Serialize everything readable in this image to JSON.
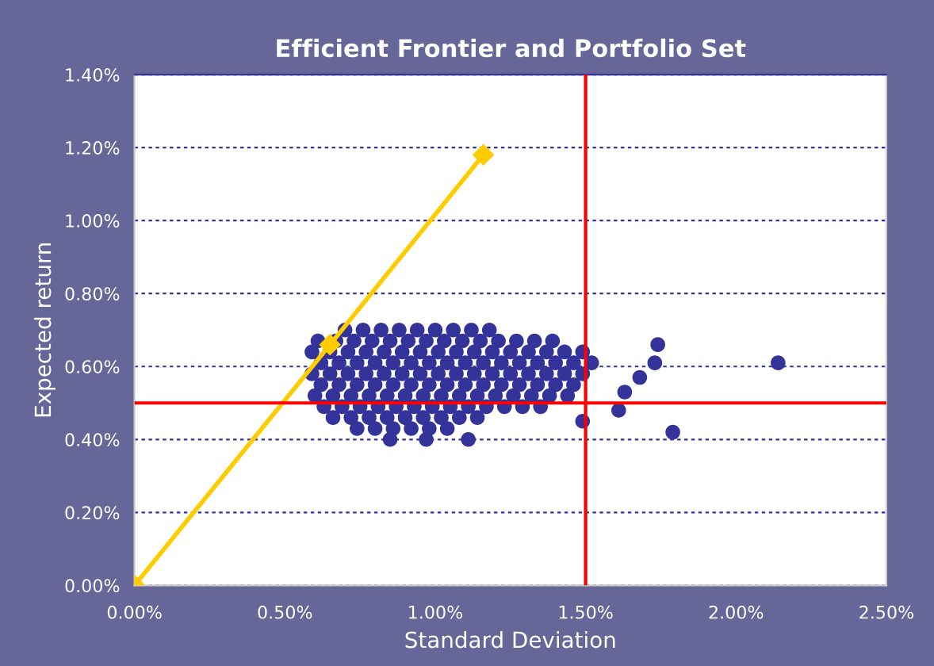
{
  "chart_data": {
    "type": "scatter",
    "title": "Efficient Frontier and Portfolio Set",
    "xlabel": "Standard Deviation",
    "ylabel": "Expected return",
    "xlim": [
      0,
      2.5
    ],
    "ylim": [
      0,
      1.4
    ],
    "xticks": [
      {
        "value": 0,
        "label": "0.00%"
      },
      {
        "value": 0.5,
        "label": "0.50%"
      },
      {
        "value": 1,
        "label": "1.00%"
      },
      {
        "value": 1.5,
        "label": "1.50%"
      },
      {
        "value": 2,
        "label": "2.00%"
      },
      {
        "value": 2.5,
        "label": "2.50%"
      }
    ],
    "yticks": [
      {
        "value": 0,
        "label": "0.00%"
      },
      {
        "value": 0.2,
        "label": "0.20%"
      },
      {
        "value": 0.4,
        "label": "0.40%"
      },
      {
        "value": 0.6,
        "label": "0.60%"
      },
      {
        "value": 0.8,
        "label": "0.80%"
      },
      {
        "value": 1.0,
        "label": "1.00%"
      },
      {
        "value": 1.2,
        "label": "1.20%"
      },
      {
        "value": 1.4,
        "label": "1.40%"
      }
    ],
    "grid": "y",
    "legend": false,
    "ref_lines": [
      {
        "axis": "x",
        "value": 1.5,
        "color": "#ff0000"
      },
      {
        "axis": "y",
        "value": 0.5,
        "color": "#ff0000"
      }
    ],
    "series": [
      {
        "color": "#333399",
        "marker": "circle",
        "x": [
          0.7,
          0.76,
          0.82,
          0.88,
          0.94,
          1.0,
          1.06,
          1.12,
          1.18,
          0.61,
          0.67,
          0.73,
          0.79,
          0.85,
          0.91,
          0.97,
          1.03,
          1.09,
          1.15,
          1.21,
          1.27,
          1.33,
          1.39,
          0.59,
          0.65,
          0.71,
          0.77,
          0.83,
          0.89,
          0.95,
          1.01,
          1.07,
          1.13,
          1.19,
          1.25,
          1.31,
          1.37,
          1.43,
          1.49,
          0.62,
          0.68,
          0.74,
          0.8,
          0.86,
          0.92,
          0.98,
          1.04,
          1.1,
          1.16,
          1.22,
          1.28,
          1.34,
          1.4,
          1.46,
          1.52,
          0.59,
          0.65,
          0.71,
          0.77,
          0.83,
          0.89,
          0.95,
          1.01,
          1.07,
          1.13,
          1.19,
          1.25,
          1.31,
          1.37,
          1.43,
          1.49,
          0.62,
          0.68,
          0.74,
          0.8,
          0.86,
          0.92,
          0.98,
          1.04,
          1.1,
          1.16,
          1.22,
          1.28,
          1.34,
          1.4,
          1.46,
          0.6,
          0.66,
          0.72,
          0.78,
          0.84,
          0.9,
          0.96,
          1.02,
          1.08,
          1.14,
          1.2,
          1.26,
          1.32,
          1.38,
          1.44,
          0.63,
          0.69,
          0.75,
          0.81,
          0.87,
          0.93,
          0.99,
          1.05,
          1.11,
          1.17,
          1.23,
          1.29,
          1.35,
          0.66,
          0.72,
          0.78,
          0.84,
          0.9,
          0.96,
          1.02,
          1.08,
          1.14,
          0.74,
          0.8,
          0.86,
          0.92,
          0.98,
          1.04,
          0.85,
          0.97,
          1.11,
          2.14,
          1.74,
          1.73,
          1.68,
          1.63,
          1.61,
          1.79,
          1.49
        ],
        "values": [
          0.7,
          0.7,
          0.7,
          0.7,
          0.7,
          0.7,
          0.7,
          0.7,
          0.7,
          0.67,
          0.67,
          0.67,
          0.67,
          0.67,
          0.67,
          0.67,
          0.67,
          0.67,
          0.67,
          0.67,
          0.67,
          0.67,
          0.67,
          0.64,
          0.64,
          0.64,
          0.64,
          0.64,
          0.64,
          0.64,
          0.64,
          0.64,
          0.64,
          0.64,
          0.64,
          0.64,
          0.64,
          0.64,
          0.64,
          0.61,
          0.61,
          0.61,
          0.61,
          0.61,
          0.61,
          0.61,
          0.61,
          0.61,
          0.61,
          0.61,
          0.61,
          0.61,
          0.61,
          0.61,
          0.61,
          0.58,
          0.58,
          0.58,
          0.58,
          0.58,
          0.58,
          0.58,
          0.58,
          0.58,
          0.58,
          0.58,
          0.58,
          0.58,
          0.58,
          0.58,
          0.58,
          0.55,
          0.55,
          0.55,
          0.55,
          0.55,
          0.55,
          0.55,
          0.55,
          0.55,
          0.55,
          0.55,
          0.55,
          0.55,
          0.55,
          0.55,
          0.52,
          0.52,
          0.52,
          0.52,
          0.52,
          0.52,
          0.52,
          0.52,
          0.52,
          0.52,
          0.52,
          0.52,
          0.52,
          0.52,
          0.52,
          0.49,
          0.49,
          0.49,
          0.49,
          0.49,
          0.49,
          0.49,
          0.49,
          0.49,
          0.49,
          0.49,
          0.49,
          0.49,
          0.46,
          0.46,
          0.46,
          0.46,
          0.46,
          0.46,
          0.46,
          0.46,
          0.46,
          0.43,
          0.43,
          0.43,
          0.43,
          0.43,
          0.43,
          0.4,
          0.4,
          0.4,
          0.61,
          0.66,
          0.61,
          0.57,
          0.53,
          0.48,
          0.42,
          0.45
        ]
      },
      {
        "type": "line",
        "color": "#ffcc00",
        "marker": "diamond",
        "x": [
          0,
          0.65,
          1.16
        ],
        "values": [
          0,
          0.66,
          1.18
        ]
      }
    ]
  }
}
